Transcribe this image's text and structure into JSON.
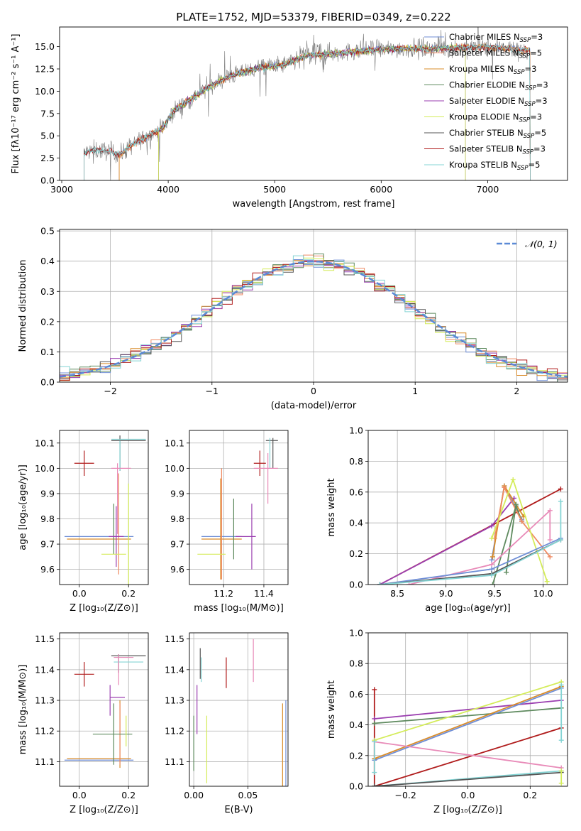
{
  "figure": {
    "title": "PLATE=1752, MJD=53379, FIBERID=0349, z=0.222",
    "background": "#ffffff"
  },
  "palette": {
    "Chabrier MILES": "#6f8ed6",
    "Salpeter MILES": "#ef8a62",
    "Kroupa MILES": "#d98c2a",
    "Chabrier ELODIE": "#5e8a5e",
    "Salpeter ELODIE": "#9b3fb0",
    "Kroupa ELODIE": "#d4ec5a",
    "Chabrier STELIB": "#555555",
    "Salpeter STELIB": "#b01c1c",
    "Kroupa STELIB": "#84d4d4",
    "pink": "#e88ab8",
    "gaussian": "#5b8ad6"
  },
  "chart_data": [
    {
      "id": "spectrum",
      "type": "line",
      "xlabel": "wavelength [Angstrom, rest frame]",
      "ylabel": "Flux [fλ10⁻¹⁷ erg cm⁻² s⁻¹ A⁻¹]",
      "xlim": [
        2980,
        7750
      ],
      "ylim": [
        0,
        17.2
      ],
      "xticks": [
        3000,
        4000,
        5000,
        6000,
        7000
      ],
      "yticks": [
        0.0,
        2.5,
        5.0,
        7.5,
        10.0,
        12.5,
        15.0
      ],
      "grid": false,
      "legend_position": "top-right",
      "data_profile": {
        "x": [
          3210,
          3300,
          3450,
          3550,
          3650,
          3800,
          3950,
          4050,
          4200,
          4400,
          4600,
          4850,
          5100,
          5300,
          5600,
          5900,
          6200,
          6500,
          6800,
          7100,
          7400
        ],
        "y": [
          3.1,
          3.4,
          3.3,
          2.9,
          3.9,
          4.9,
          5.9,
          7.8,
          9.0,
          10.6,
          11.8,
          12.6,
          13.0,
          14.0,
          14.3,
          14.6,
          14.8,
          14.8,
          14.9,
          14.9,
          14.5
        ]
      },
      "series": [
        {
          "name": "Chabrier MILES",
          "n_ssp": "3",
          "x_range": [
            3540,
            7400
          ]
        },
        {
          "name": "Salpeter MILES",
          "n_ssp": "5",
          "x_range": [
            3540,
            7400
          ]
        },
        {
          "name": "Kroupa MILES",
          "n_ssp": "3",
          "x_range": [
            3540,
            7400
          ]
        },
        {
          "name": "Chabrier ELODIE",
          "n_ssp": "3",
          "x_range": [
            3910,
            6790
          ]
        },
        {
          "name": "Salpeter ELODIE",
          "n_ssp": "3",
          "x_range": [
            3910,
            6790
          ]
        },
        {
          "name": "Kroupa ELODIE",
          "n_ssp": "3",
          "x_range": [
            3910,
            6790
          ]
        },
        {
          "name": "Chabrier STELIB",
          "n_ssp": "5",
          "x_range": [
            3210,
            7400
          ]
        },
        {
          "name": "Salpeter STELIB",
          "n_ssp": "3",
          "x_range": [
            3210,
            7400
          ]
        },
        {
          "name": "Kroupa STELIB",
          "n_ssp": "5",
          "x_range": [
            3210,
            7400
          ]
        }
      ]
    },
    {
      "id": "residuals",
      "type": "line",
      "xlabel": "(data-model)/error",
      "ylabel": "Normed distribution",
      "xlim": [
        -2.5,
        2.5
      ],
      "ylim": [
        0,
        0.505
      ],
      "xticks": [
        -2,
        -1,
        0,
        1,
        2
      ],
      "yticks": [
        0.0,
        0.1,
        0.2,
        0.3,
        0.4,
        0.5
      ],
      "grid": true,
      "legend_position": "top-right",
      "gaussian_label": "𝒩(0, 1)",
      "bin_width": 0.1
    },
    {
      "id": "z-age",
      "type": "errorbar",
      "xlabel": "Z [log₁₀(Z/Z⊙)]",
      "ylabel": "age  [log₁₀(age/yr)]",
      "xlim": [
        -0.08,
        0.28
      ],
      "ylim": [
        9.54,
        10.15
      ],
      "xticks": [
        0.0,
        0.2
      ],
      "yticks": [
        9.6,
        9.7,
        9.8,
        9.9,
        10.0,
        10.1
      ],
      "grid": true,
      "points": [
        {
          "c": "Chabrier MILES",
          "x": 0.08,
          "xe": 0.14,
          "y": 9.73,
          "ye": 0.0
        },
        {
          "c": "Kroupa MILES",
          "x": 0.08,
          "xe": 0.13,
          "y": 9.72,
          "ye": 0.0
        },
        {
          "c": "Salpeter MILES",
          "x": 0.16,
          "xe": 0.0,
          "y": 9.78,
          "ye": 0.2
        },
        {
          "c": "Chabrier ELODIE",
          "x": 0.14,
          "xe": 0.0,
          "y": 9.76,
          "ye": 0.1
        },
        {
          "c": "Salpeter ELODIE",
          "x": 0.15,
          "xe": 0.03,
          "y": 9.73,
          "ye": 0.12
        },
        {
          "c": "Kroupa ELODIE",
          "x": 0.14,
          "xe": 0.05,
          "y": 9.66,
          "ye": 0.0
        },
        {
          "c": "Kroupa ELODIE",
          "x": 0.2,
          "xe": 0.0,
          "y": 9.74,
          "ye": 0.2
        },
        {
          "c": "Chabrier STELIB",
          "x": 0.2,
          "xe": 0.07,
          "y": 10.11,
          "ye": 0.0
        },
        {
          "c": "Chabrier STELIB",
          "x": 0.165,
          "xe": 0.0,
          "y": 10.06,
          "ye": 0.07
        },
        {
          "c": "Kroupa STELIB",
          "x": 0.2,
          "xe": 0.07,
          "y": 10.115,
          "ye": 0.0
        },
        {
          "c": "Kroupa STELIB",
          "x": 0.165,
          "xe": 0.0,
          "y": 10.05,
          "ye": 0.06
        },
        {
          "c": "Salpeter STELIB",
          "x": 0.02,
          "xe": 0.04,
          "y": 10.02,
          "ye": 0.05
        },
        {
          "c": "pink",
          "x": 0.17,
          "xe": 0.04,
          "y": 10.0,
          "ye": 0.0
        },
        {
          "c": "pink",
          "x": 0.155,
          "xe": 0.0,
          "y": 9.88,
          "ye": 0.14
        }
      ]
    },
    {
      "id": "mass-age",
      "type": "errorbar",
      "xlabel": "mass [log₁₀(M/M⊙)]",
      "ylabel": "",
      "xlim": [
        11.03,
        11.52
      ],
      "ylim": [
        9.54,
        10.15
      ],
      "xticks": [
        11.2,
        11.4
      ],
      "yticks": [
        9.6,
        9.7,
        9.8,
        9.9,
        10.0,
        10.1
      ],
      "grid": true,
      "points": [
        {
          "c": "Chabrier MILES",
          "x": 11.19,
          "xe": 0.1,
          "y": 9.73,
          "ye": 0.0
        },
        {
          "c": "Kroupa MILES",
          "x": 11.19,
          "xe": 0.1,
          "y": 9.72,
          "ye": 0.0
        },
        {
          "c": "Salpeter MILES",
          "x": 11.19,
          "xe": 0.0,
          "y": 9.78,
          "ye": 0.22
        },
        {
          "c": "Kroupa MILES",
          "x": 11.185,
          "xe": 0.0,
          "y": 9.76,
          "ye": 0.2
        },
        {
          "c": "Chabrier ELODIE",
          "x": 11.25,
          "xe": 0.0,
          "y": 9.76,
          "ye": 0.12
        },
        {
          "c": "Salpeter ELODIE",
          "x": 11.31,
          "xe": 0.05,
          "y": 9.73,
          "ye": 0.0
        },
        {
          "c": "Salpeter ELODIE",
          "x": 11.34,
          "xe": 0.0,
          "y": 9.73,
          "ye": 0.13
        },
        {
          "c": "Kroupa ELODIE",
          "x": 11.14,
          "xe": 0.07,
          "y": 9.66,
          "ye": 0.0
        },
        {
          "c": "Chabrier STELIB",
          "x": 11.44,
          "xe": 0.03,
          "y": 10.11,
          "ye": 0.0
        },
        {
          "c": "Chabrier STELIB",
          "x": 11.445,
          "xe": 0.0,
          "y": 10.06,
          "ye": 0.06
        },
        {
          "c": "Kroupa STELIB",
          "x": 11.43,
          "xe": 0.0,
          "y": 10.06,
          "ye": 0.06
        },
        {
          "c": "Salpeter STELIB",
          "x": 11.38,
          "xe": 0.03,
          "y": 10.02,
          "ye": 0.05
        },
        {
          "c": "pink",
          "x": 11.41,
          "xe": 0.06,
          "y": 10.0,
          "ye": 0.0
        },
        {
          "c": "pink",
          "x": 11.42,
          "xe": 0.0,
          "y": 9.96,
          "ye": 0.1
        }
      ]
    },
    {
      "id": "age-weight",
      "type": "line",
      "xlabel": "age  [log₁₀(age/yr)]",
      "ylabel": "mass weight",
      "xlim": [
        8.2,
        10.25
      ],
      "ylim": [
        0,
        1.0
      ],
      "xticks": [
        8.5,
        9.0,
        9.5,
        10.0
      ],
      "yticks": [
        0.0,
        0.2,
        0.4,
        0.6,
        0.8,
        1.0
      ],
      "grid": true,
      "series": [
        {
          "c": "Salpeter STELIB",
          "x": [
            8.32,
            10.18
          ],
          "y": [
            0.0,
            0.62
          ]
        },
        {
          "c": "Salpeter ELODIE",
          "x": [
            8.32,
            9.47,
            9.7
          ],
          "y": [
            0.0,
            0.38,
            0.56
          ]
        },
        {
          "c": "Chabrier MILES",
          "x": [
            9.47,
            9.6,
            9.78
          ],
          "y": [
            0.16,
            0.64,
            0.42
          ]
        },
        {
          "c": "Kroupa MILES",
          "x": [
            9.48,
            9.6,
            9.8
          ],
          "y": [
            0.18,
            0.64,
            0.44
          ]
        },
        {
          "c": "Chabrier ELODIE",
          "x": [
            9.48,
            9.72,
            9.78
          ],
          "y": [
            0.0,
            0.51,
            0.41
          ]
        },
        {
          "c": "Salpeter MILES",
          "x": [
            9.5,
            9.6,
            9.78,
            10.07
          ],
          "y": [
            0.3,
            0.63,
            0.41,
            0.18
          ]
        },
        {
          "c": "Kroupa ELODIE",
          "x": [
            9.47,
            9.69,
            10.04
          ],
          "y": [
            0.3,
            0.68,
            0.02
          ]
        },
        {
          "c": "Chabrier ELODIE",
          "x": [
            9.62,
            9.72
          ],
          "y": [
            0.08,
            0.52
          ]
        },
        {
          "c": "pink",
          "x": [
            8.62,
            9.47,
            10.07,
            10.07
          ],
          "y": [
            0.0,
            0.13,
            0.48,
            0.29
          ]
        },
        {
          "c": "Chabrier MILES",
          "x": [
            8.32,
            9.47,
            10.18
          ],
          "y": [
            0.0,
            0.1,
            0.3
          ]
        },
        {
          "c": "Chabrier STELIB",
          "x": [
            8.32,
            9.47,
            10.18
          ],
          "y": [
            0.0,
            0.07,
            0.29
          ]
        },
        {
          "c": "Kroupa STELIB",
          "x": [
            8.32,
            9.47,
            10.18,
            10.18
          ],
          "y": [
            0.0,
            0.06,
            0.29,
            0.54
          ]
        }
      ]
    },
    {
      "id": "z-mass",
      "type": "errorbar",
      "xlabel": "Z [log₁₀(Z/Z⊙)]",
      "ylabel": "mass [log₁₀(M/M⊙)]",
      "xlim": [
        -0.08,
        0.28
      ],
      "ylim": [
        11.02,
        11.52
      ],
      "xticks": [
        0.0,
        0.2
      ],
      "yticks": [
        11.1,
        11.2,
        11.3,
        11.4,
        11.5
      ],
      "grid": true,
      "points": [
        {
          "c": "Chabrier MILES",
          "x": 0.08,
          "xe": 0.14,
          "y": 11.105,
          "ye": 0.0
        },
        {
          "c": "Kroupa MILES",
          "x": 0.08,
          "xe": 0.13,
          "y": 11.11,
          "ye": 0.0
        },
        {
          "c": "Kroupa MILES",
          "x": 0.165,
          "xe": 0.0,
          "y": 11.19,
          "ye": 0.11
        },
        {
          "c": "Salpeter MILES",
          "x": 0.165,
          "xe": 0.0,
          "y": 11.19,
          "ye": 0.1
        },
        {
          "c": "Chabrier ELODIE",
          "x": 0.135,
          "xe": 0.08,
          "y": 11.19,
          "ye": 0.0
        },
        {
          "c": "Chabrier ELODIE",
          "x": 0.14,
          "xe": 0.0,
          "y": 11.19,
          "ye": 0.1
        },
        {
          "c": "Salpeter ELODIE",
          "x": 0.155,
          "xe": 0.03,
          "y": 11.31,
          "ye": 0.0
        },
        {
          "c": "Salpeter ELODIE",
          "x": 0.125,
          "xe": 0.0,
          "y": 11.3,
          "ye": 0.05
        },
        {
          "c": "Kroupa ELODIE",
          "x": 0.19,
          "xe": 0.0,
          "y": 11.2,
          "ye": 0.05
        },
        {
          "c": "Chabrier STELIB",
          "x": 0.2,
          "xe": 0.07,
          "y": 11.445,
          "ye": 0.0
        },
        {
          "c": "Chabrier STELIB",
          "x": 0.16,
          "xe": 0.0,
          "y": 11.42,
          "ye": 0.03
        },
        {
          "c": "Kroupa STELIB",
          "x": 0.2,
          "xe": 0.06,
          "y": 11.425,
          "ye": 0.0
        },
        {
          "c": "Salpeter STELIB",
          "x": 0.02,
          "xe": 0.04,
          "y": 11.385,
          "ye": 0.04
        },
        {
          "c": "pink",
          "x": 0.18,
          "xe": 0.04,
          "y": 11.44,
          "ye": 0.0
        },
        {
          "c": "pink",
          "x": 0.16,
          "xe": 0.0,
          "y": 11.4,
          "ye": 0.05
        }
      ]
    },
    {
      "id": "ebv-mass",
      "type": "errorbar",
      "xlabel": "E(B-V)",
      "ylabel": "",
      "xlim": [
        -0.004,
        0.087
      ],
      "ylim": [
        11.02,
        11.52
      ],
      "xticks": [
        0.0,
        0.05
      ],
      "xtick_labels": [
        "0.00",
        "0.05"
      ],
      "yticks": [
        11.1,
        11.2,
        11.3,
        11.4,
        11.5
      ],
      "grid": true,
      "points": [
        {
          "c": "Chabrier ELODIE",
          "x": 0.0,
          "xe": 0.0,
          "y": 11.16,
          "ye": 0.09
        },
        {
          "c": "Salpeter ELODIE",
          "x": 0.003,
          "xe": 0.0,
          "y": 11.27,
          "ye": 0.08
        },
        {
          "c": "Chabrier STELIB",
          "x": 0.006,
          "xe": 0.0,
          "y": 11.42,
          "ye": 0.05
        },
        {
          "c": "Kroupa STELIB",
          "x": 0.007,
          "xe": 0.0,
          "y": 11.4,
          "ye": 0.04
        },
        {
          "c": "Kroupa ELODIE",
          "x": 0.012,
          "xe": 0.0,
          "y": 11.14,
          "ye": 0.11
        },
        {
          "c": "Salpeter STELIB",
          "x": 0.03,
          "xe": 0.0,
          "y": 11.39,
          "ye": 0.05
        },
        {
          "c": "pink",
          "x": 0.055,
          "xe": 0.0,
          "y": 11.43,
          "ye": 0.07
        },
        {
          "c": "Kroupa MILES",
          "x": 0.082,
          "xe": 0.0,
          "y": 11.14,
          "ye": 0.15
        },
        {
          "c": "Chabrier MILES",
          "x": 0.085,
          "xe": 0.0,
          "y": 11.14,
          "ye": 0.16
        }
      ]
    },
    {
      "id": "z-weight",
      "type": "line",
      "xlabel": "Z [log₁₀(Z/Z⊙)]",
      "ylabel": "mass weight",
      "xlim": [
        -0.32,
        0.32
      ],
      "ylim": [
        0,
        1.0
      ],
      "xticks": [
        -0.2,
        0.0,
        0.2
      ],
      "yticks": [
        0.0,
        0.2,
        0.4,
        0.6,
        0.8,
        1.0
      ],
      "grid": true,
      "series": [
        {
          "c": "Salpeter STELIB",
          "x": [
            -0.3,
            -0.3
          ],
          "y": [
            0.0,
            0.63
          ]
        },
        {
          "c": "Salpeter STELIB",
          "x": [
            -0.3,
            0.3
          ],
          "y": [
            0.0,
            0.38
          ]
        },
        {
          "c": "Salpeter ELODIE",
          "x": [
            -0.3,
            0.3
          ],
          "y": [
            0.44,
            0.56
          ]
        },
        {
          "c": "Chabrier ELODIE",
          "x": [
            -0.3,
            0.3
          ],
          "y": [
            0.41,
            0.51
          ]
        },
        {
          "c": "Kroupa ELODIE",
          "x": [
            -0.3,
            0.3
          ],
          "y": [
            0.3,
            0.68
          ]
        },
        {
          "c": "Chabrier MILES",
          "x": [
            -0.3,
            0.3
          ],
          "y": [
            0.17,
            0.64
          ]
        },
        {
          "c": "Kroupa MILES",
          "x": [
            -0.3,
            0.3
          ],
          "y": [
            0.18,
            0.65
          ]
        },
        {
          "c": "pink",
          "x": [
            -0.3,
            0.3
          ],
          "y": [
            0.29,
            0.12
          ]
        },
        {
          "c": "Kroupa STELIB",
          "x": [
            -0.3,
            -0.3
          ],
          "y": [
            0.09,
            0.29
          ]
        },
        {
          "c": "Kroupa STELIB",
          "x": [
            -0.3,
            0.3
          ],
          "y": [
            0.0,
            0.1
          ]
        },
        {
          "c": "Chabrier STELIB",
          "x": [
            -0.3,
            0.3
          ],
          "y": [
            0.0,
            0.09
          ]
        },
        {
          "c": "Kroupa STELIB",
          "x": [
            0.3,
            0.3
          ],
          "y": [
            0.3,
            0.66
          ]
        },
        {
          "c": "Kroupa ELODIE",
          "x": [
            0.3,
            0.3
          ],
          "y": [
            0.02,
            0.1
          ]
        }
      ]
    }
  ]
}
